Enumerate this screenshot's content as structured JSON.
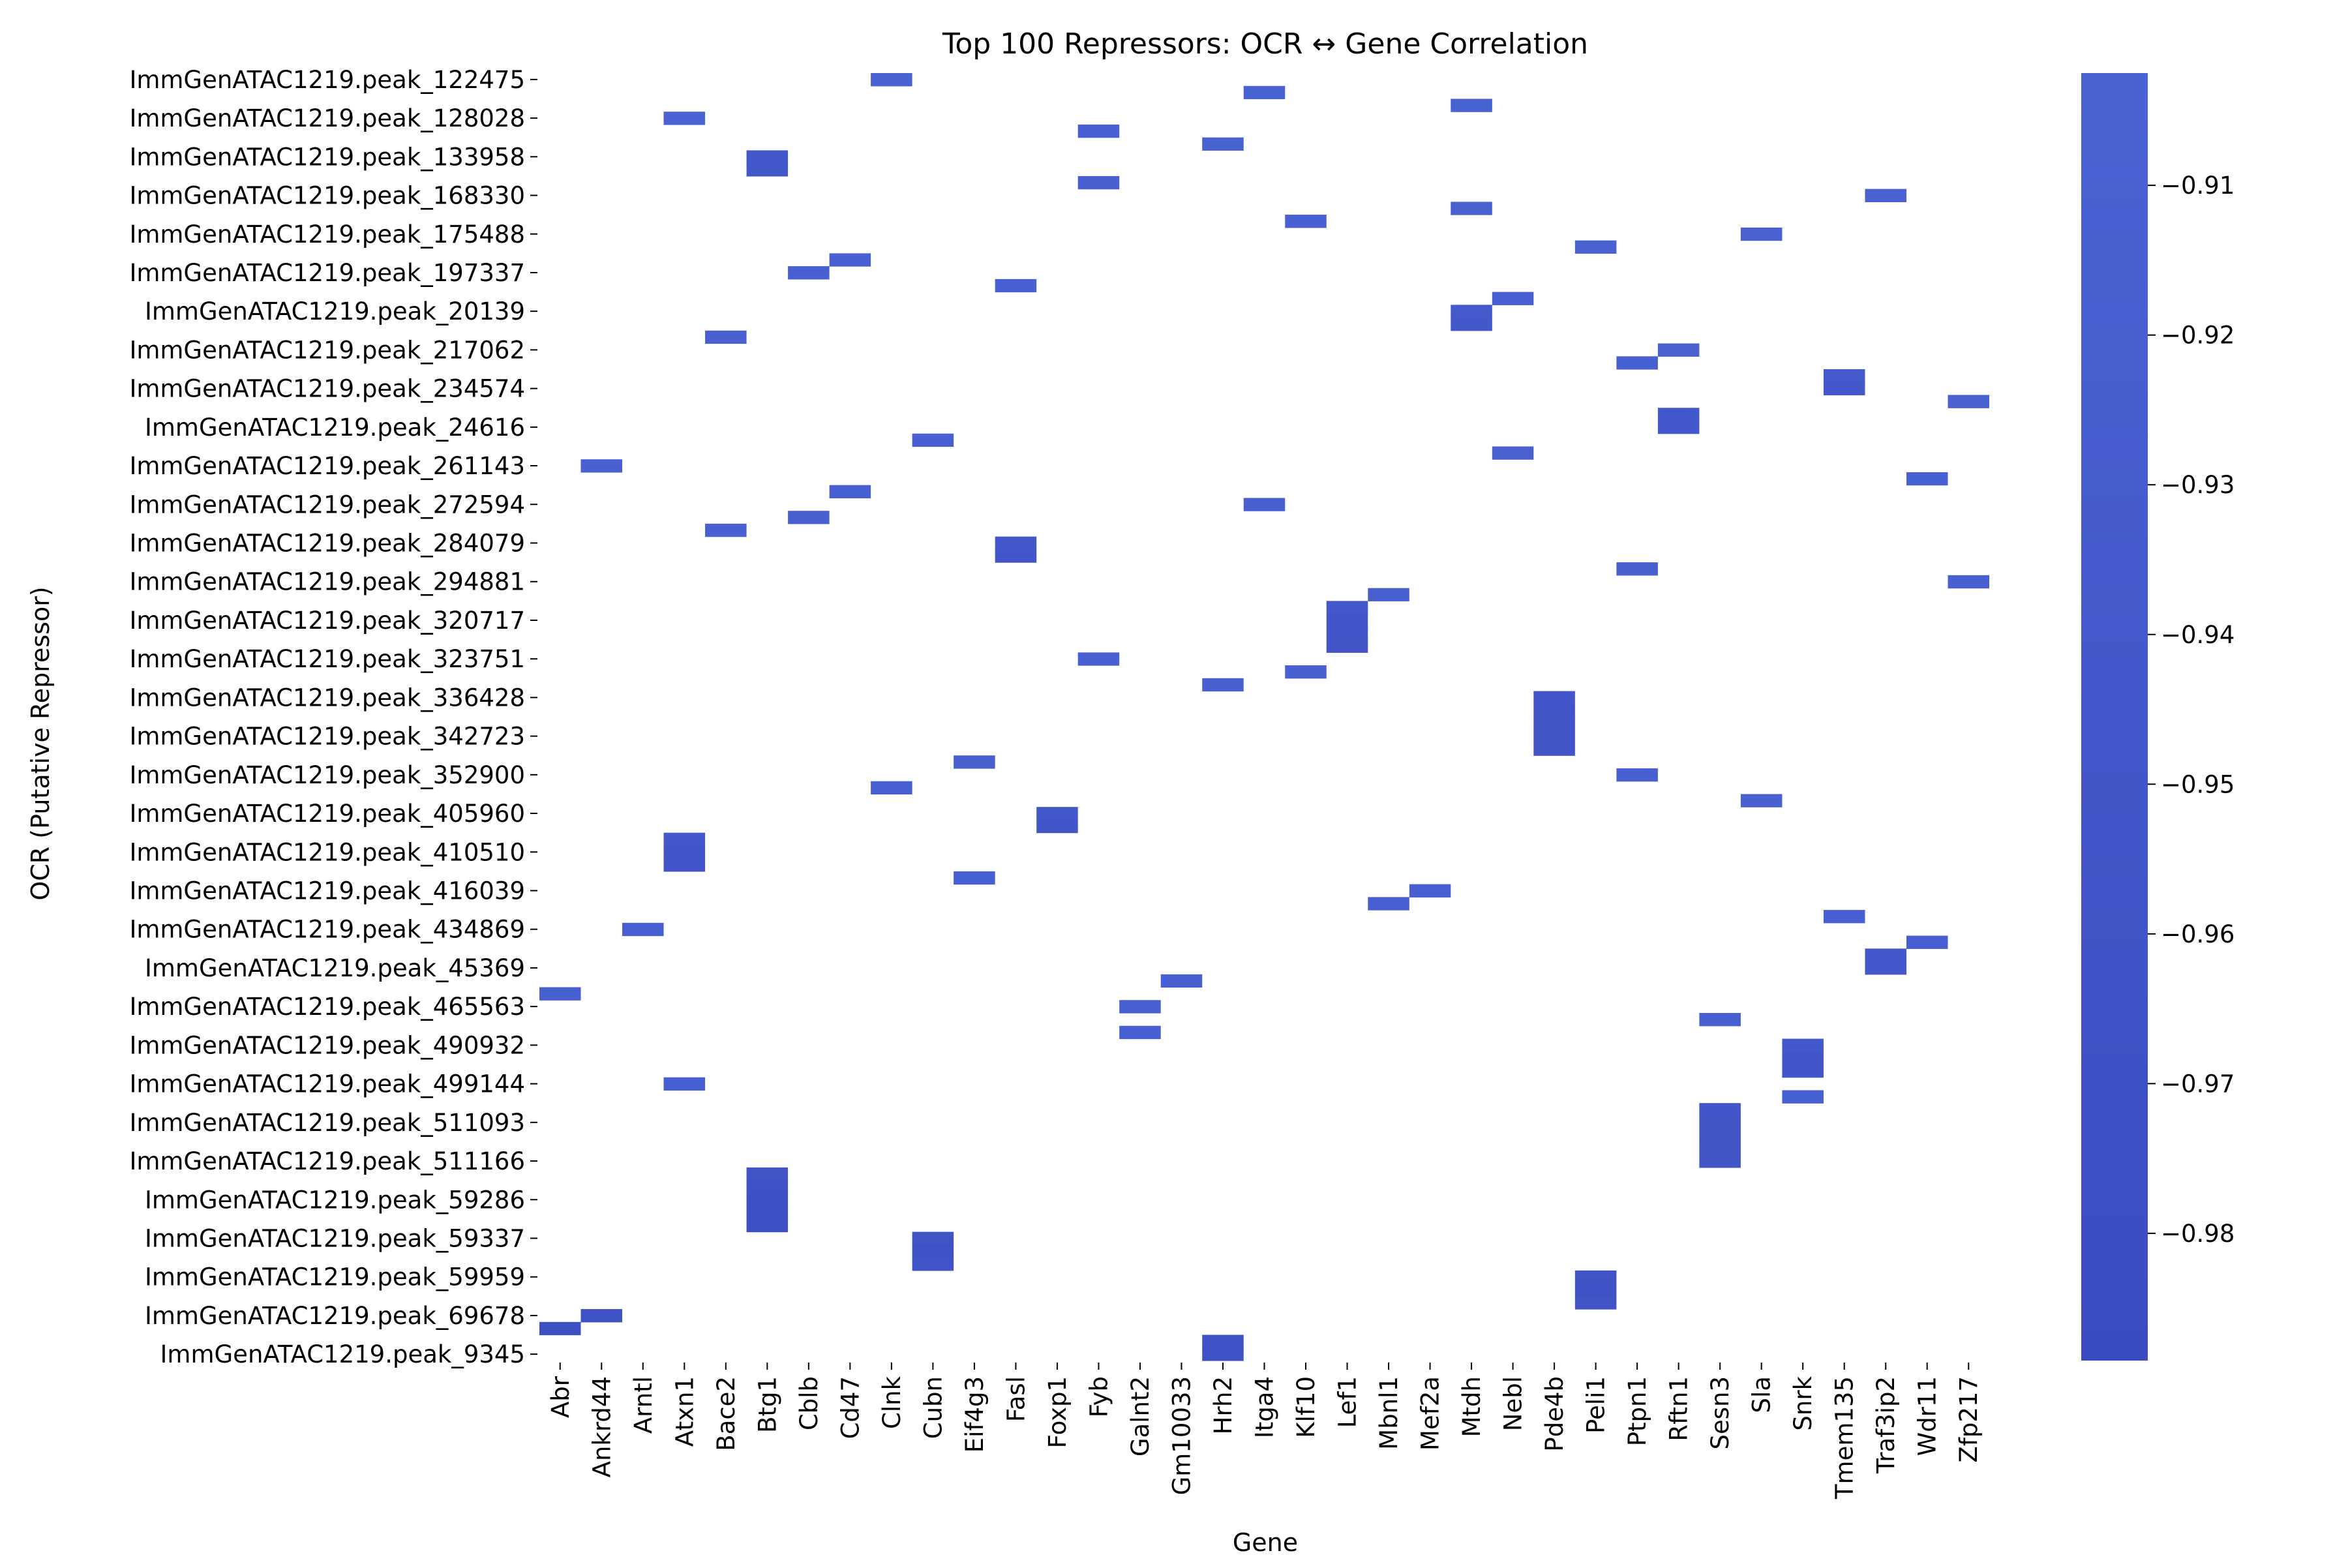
{
  "chart_data": {
    "type": "heatmap",
    "title": "Top 100 Repressors: OCR ↔ Gene Correlation",
    "xlabel": "Gene",
    "ylabel": "OCR (Putative Repressor)",
    "genes": [
      "Abr",
      "Ankrd44",
      "Arntl",
      "Atxn1",
      "Bace2",
      "Btg1",
      "Cblb",
      "Cd47",
      "Clnk",
      "Cubn",
      "Eif4g3",
      "Fasl",
      "Foxp1",
      "Fyb",
      "Galnt2",
      "Gm10033",
      "Hrh2",
      "Itga4",
      "Klf10",
      "Lef1",
      "Mbnl1",
      "Mef2a",
      "Mtdh",
      "Nebl",
      "Pde4b",
      "Peli1",
      "Ptpn1",
      "Rftn1",
      "Sesn3",
      "Sla",
      "Snrk",
      "Tmem135",
      "Traf3ip2",
      "Wdr11",
      "Zfp217"
    ],
    "visible_y_labels": [
      "ImmGenATAC1219.peak_122475",
      "ImmGenATAC1219.peak_128028",
      "ImmGenATAC1219.peak_133958",
      "ImmGenATAC1219.peak_168330",
      "ImmGenATAC1219.peak_175488",
      "ImmGenATAC1219.peak_197337",
      "ImmGenATAC1219.peak_20139",
      "ImmGenATAC1219.peak_217062",
      "ImmGenATAC1219.peak_234574",
      "ImmGenATAC1219.peak_24616",
      "ImmGenATAC1219.peak_261143",
      "ImmGenATAC1219.peak_272594",
      "ImmGenATAC1219.peak_284079",
      "ImmGenATAC1219.peak_294881",
      "ImmGenATAC1219.peak_320717",
      "ImmGenATAC1219.peak_323751",
      "ImmGenATAC1219.peak_336428",
      "ImmGenATAC1219.peak_342723",
      "ImmGenATAC1219.peak_352900",
      "ImmGenATAC1219.peak_405960",
      "ImmGenATAC1219.peak_410510",
      "ImmGenATAC1219.peak_416039",
      "ImmGenATAC1219.peak_434869",
      "ImmGenATAC1219.peak_45369",
      "ImmGenATAC1219.peak_465563",
      "ImmGenATAC1219.peak_490932",
      "ImmGenATAC1219.peak_499144",
      "ImmGenATAC1219.peak_511093",
      "ImmGenATAC1219.peak_511166",
      "ImmGenATAC1219.peak_59286",
      "ImmGenATAC1219.peak_59337",
      "ImmGenATAC1219.peak_59959",
      "ImmGenATAC1219.peak_69678",
      "ImmGenATAC1219.peak_9345"
    ],
    "row_count": 100,
    "cells": [
      [
        "Clnk",
        0,
        -0.905
      ],
      [
        "Itga4",
        1,
        -0.908
      ],
      [
        "Mtdh",
        2,
        -0.906
      ],
      [
        "Atxn1",
        3,
        -0.91
      ],
      [
        "Fyb",
        4,
        -0.912
      ],
      [
        "Hrh2",
        5,
        -0.906
      ],
      [
        "Btg1",
        6,
        -0.945
      ],
      [
        "Btg1",
        7,
        -0.947
      ],
      [
        "Fyb",
        8,
        -0.915
      ],
      [
        "Traf3ip2",
        9,
        -0.91
      ],
      [
        "Mtdh",
        10,
        -0.91
      ],
      [
        "Klf10",
        11,
        -0.912
      ],
      [
        "Sla",
        12,
        -0.91
      ],
      [
        "Peli1",
        13,
        -0.91
      ],
      [
        "Cd47",
        14,
        -0.912
      ],
      [
        "Cblb",
        15,
        -0.912
      ],
      [
        "Fasl",
        16,
        -0.912
      ],
      [
        "Nebl",
        17,
        -0.912
      ],
      [
        "Mtdh",
        18,
        -0.935
      ],
      [
        "Mtdh",
        19,
        -0.94
      ],
      [
        "Bace2",
        20,
        -0.912
      ],
      [
        "Rftn1",
        21,
        -0.91
      ],
      [
        "Ptpn1",
        22,
        -0.912
      ],
      [
        "Tmem135",
        23,
        -0.935
      ],
      [
        "Tmem135",
        24,
        -0.94
      ],
      [
        "Zfp217",
        25,
        -0.91
      ],
      [
        "Rftn1",
        26,
        -0.94
      ],
      [
        "Rftn1",
        27,
        -0.94
      ],
      [
        "Cubn",
        28,
        -0.912
      ],
      [
        "Nebl",
        29,
        -0.91
      ],
      [
        "Ankrd44",
        30,
        -0.912
      ],
      [
        "Wdr11",
        31,
        -0.915
      ],
      [
        "Cd47",
        32,
        -0.912
      ],
      [
        "Itga4",
        33,
        -0.915
      ],
      [
        "Cblb",
        34,
        -0.915
      ],
      [
        "Bace2",
        35,
        -0.915
      ],
      [
        "Fasl",
        36,
        -0.945
      ],
      [
        "Fasl",
        37,
        -0.95
      ],
      [
        "Ptpn1",
        38,
        -0.915
      ],
      [
        "Zfp217",
        39,
        -0.915
      ],
      [
        "Mbnl1",
        40,
        -0.915
      ],
      [
        "Lef1",
        41,
        -0.945
      ],
      [
        "Lef1",
        42,
        -0.95
      ],
      [
        "Lef1",
        43,
        -0.95
      ],
      [
        "Lef1",
        44,
        -0.955
      ],
      [
        "Fyb",
        45,
        -0.915
      ],
      [
        "Klf10",
        46,
        -0.915
      ],
      [
        "Hrh2",
        47,
        -0.915
      ],
      [
        "Pde4b",
        48,
        -0.95
      ],
      [
        "Pde4b",
        49,
        -0.955
      ],
      [
        "Pde4b",
        50,
        -0.955
      ],
      [
        "Pde4b",
        51,
        -0.96
      ],
      [
        "Pde4b",
        52,
        -0.955
      ],
      [
        "Eif4g3",
        53,
        -0.915
      ],
      [
        "Ptpn1",
        54,
        -0.915
      ],
      [
        "Clnk",
        55,
        -0.918
      ],
      [
        "Sla",
        56,
        -0.915
      ],
      [
        "Foxp1",
        57,
        -0.945
      ],
      [
        "Foxp1",
        58,
        -0.95
      ],
      [
        "Atxn1",
        59,
        -0.945
      ],
      [
        "Atxn1",
        60,
        -0.95
      ],
      [
        "Atxn1",
        61,
        -0.95
      ],
      [
        "Eif4g3",
        62,
        -0.918
      ],
      [
        "Mef2a",
        63,
        -0.918
      ],
      [
        "Mbnl1",
        64,
        -0.918
      ],
      [
        "Tmem135",
        65,
        -0.918
      ],
      [
        "Arntl",
        66,
        -0.918
      ],
      [
        "Wdr11",
        67,
        -0.918
      ],
      [
        "Traf3ip2",
        68,
        -0.94
      ],
      [
        "Traf3ip2",
        69,
        -0.945
      ],
      [
        "Gm10033",
        70,
        -0.918
      ],
      [
        "Abr",
        71,
        -0.918
      ],
      [
        "Galnt2",
        72,
        -0.918
      ],
      [
        "Sesn3",
        73,
        -0.918
      ],
      [
        "Galnt2",
        74,
        -0.918
      ],
      [
        "Snrk",
        75,
        -0.945
      ],
      [
        "Snrk",
        76,
        -0.95
      ],
      [
        "Snrk",
        77,
        -0.95
      ],
      [
        "Atxn1",
        78,
        -0.918
      ],
      [
        "Snrk",
        79,
        -0.918
      ],
      [
        "Sesn3",
        80,
        -0.95
      ],
      [
        "Sesn3",
        81,
        -0.955
      ],
      [
        "Sesn3",
        82,
        -0.96
      ],
      [
        "Sesn3",
        83,
        -0.96
      ],
      [
        "Sesn3",
        84,
        -0.955
      ],
      [
        "Btg1",
        85,
        -0.96
      ],
      [
        "Btg1",
        86,
        -0.965
      ],
      [
        "Btg1",
        87,
        -0.97
      ],
      [
        "Btg1",
        88,
        -0.975
      ],
      [
        "Btg1",
        89,
        -0.97
      ],
      [
        "Cubn",
        90,
        -0.96
      ],
      [
        "Cubn",
        91,
        -0.965
      ],
      [
        "Cubn",
        92,
        -0.96
      ],
      [
        "Peli1",
        93,
        -0.96
      ],
      [
        "Peli1",
        94,
        -0.965
      ],
      [
        "Peli1",
        95,
        -0.96
      ],
      [
        "Ankrd44",
        96,
        -0.965
      ],
      [
        "Abr",
        97,
        -0.97
      ],
      [
        "Hrh2",
        98,
        -0.965
      ],
      [
        "Hrh2",
        99,
        -0.965
      ]
    ],
    "colorbar": {
      "vmin": -0.9885,
      "vmax": -0.9025,
      "ticks": [
        -0.91,
        -0.92,
        -0.93,
        -0.94,
        -0.95,
        -0.96,
        -0.97,
        -0.98
      ],
      "tick_labels": [
        "−0.91",
        "−0.92",
        "−0.93",
        "−0.94",
        "−0.95",
        "−0.96",
        "−0.97",
        "−0.98"
      ],
      "color_high": "#4a63d3",
      "color_low": "#3b4cc0"
    }
  }
}
